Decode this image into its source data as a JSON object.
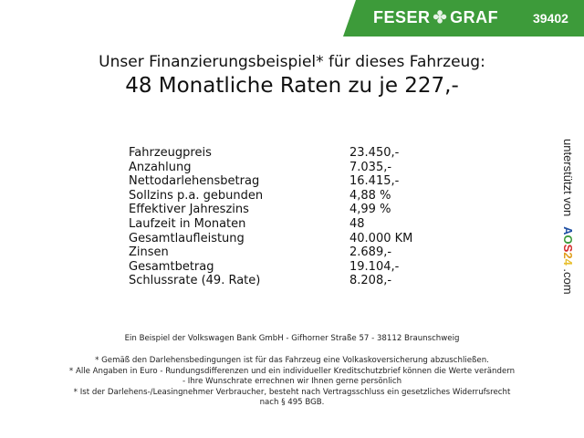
{
  "header": {
    "brand_left": "FESER",
    "brand_right": "GRAF",
    "brand_icon": "clover-icon",
    "code": "39402",
    "accent": "#3d9b3a"
  },
  "title": {
    "line1": "Unser Finanzierungsbeispiel* für dieses Fahrzeug:",
    "line2": "48 Monatliche Raten zu je 227,-"
  },
  "rows": [
    {
      "label": "Fahrzeugpreis",
      "value": "23.450,-"
    },
    {
      "label": "Anzahlung",
      "value": "7.035,-"
    },
    {
      "label": "Nettodarlehensbetrag",
      "value": "16.415,-"
    },
    {
      "label": "Sollzins p.a. gebunden",
      "value": "4,88 %"
    },
    {
      "label": "Effektiver Jahreszins",
      "value": "4,99 %"
    },
    {
      "label": "Laufzeit in Monaten",
      "value": "48"
    },
    {
      "label": "Gesamtlaufleistung",
      "value": "40.000 KM"
    },
    {
      "label": "Zinsen",
      "value": "2.689,-"
    },
    {
      "label": "Gesamtbetrag",
      "value": "19.104,-"
    },
    {
      "label": "Schlussrate (49. Rate)",
      "value": "8.208,-"
    }
  ],
  "side": {
    "text": "unterstützt von",
    "logo_a": "A",
    "logo_o": "O",
    "logo_s": "S",
    "logo_2": "2",
    "logo_4": "4",
    "suffix": ".com"
  },
  "footer": {
    "bank": "Ein Beispiel der Volkswagen Bank GmbH - Gifhorner Straße 57 - 38112 Braunschweig",
    "note1": "* Gemäß den Darlehensbedingungen ist für das Fahrzeug eine Volkaskoversicherung abzuschließen.",
    "note2a": "* Alle Angaben in Euro - Rundungsdifferenzen und ein individueller Kreditschutzbrief können die Werte verändern",
    "note2b": "- Ihre Wunschrate errechnen wir Ihnen gerne persönlich",
    "note3a": "* Ist der Darlehens-/Leasingnehmer Verbraucher, besteht nach Vertragsschluss ein gesetzliches Widerrufsrecht",
    "note3b": "nach § 495 BGB."
  }
}
